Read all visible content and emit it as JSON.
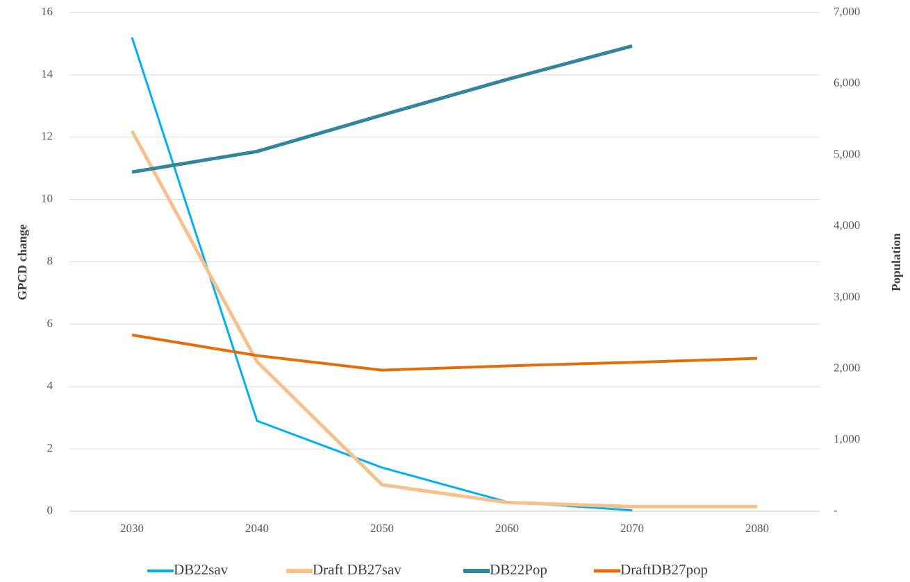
{
  "chart_data": {
    "type": "line",
    "categories": [
      "2030",
      "2040",
      "2050",
      "2060",
      "2070",
      "2080"
    ],
    "y_label": "GPCD change",
    "y2_label": "Population",
    "ylim": [
      0,
      16
    ],
    "yticks": [
      0,
      2,
      4,
      6,
      8,
      10,
      12,
      14,
      16
    ],
    "y2lim": [
      0,
      7000
    ],
    "y2ticks": [
      {
        "value": 0,
        "label": "-"
      },
      {
        "value": 1000,
        "label": "1,000"
      },
      {
        "value": 2000,
        "label": "2,000"
      },
      {
        "value": 3000,
        "label": "3,000"
      },
      {
        "value": 4000,
        "label": "4,000"
      },
      {
        "value": 5000,
        "label": "5,000"
      },
      {
        "value": 6000,
        "label": "6,000"
      },
      {
        "value": 7000,
        "label": "7,000"
      }
    ],
    "grid": true,
    "legend": "bottom",
    "series": [
      {
        "name": "DB22sav",
        "color": "#00b0f0",
        "width": 3,
        "values": [
          15.2,
          2.9,
          1.4,
          0.3,
          0.03,
          null
        ]
      },
      {
        "name": "Draft DB27sav",
        "color": "#f8c08c",
        "width": 5,
        "values": [
          12.2,
          4.8,
          0.85,
          0.28,
          0.15,
          0.15
        ]
      },
      {
        "name": "DB22Pop",
        "color": "#31859c",
        "width": 5,
        "axis": "y2",
        "values": [
          4760,
          5050,
          5560,
          6060,
          6530,
          null
        ]
      },
      {
        "name": "DraftDB27pop",
        "color": "#e46c0a",
        "width": 4,
        "axis": "y2",
        "values": [
          2474,
          2185,
          1980,
          2040,
          2090,
          2145
        ]
      }
    ]
  }
}
